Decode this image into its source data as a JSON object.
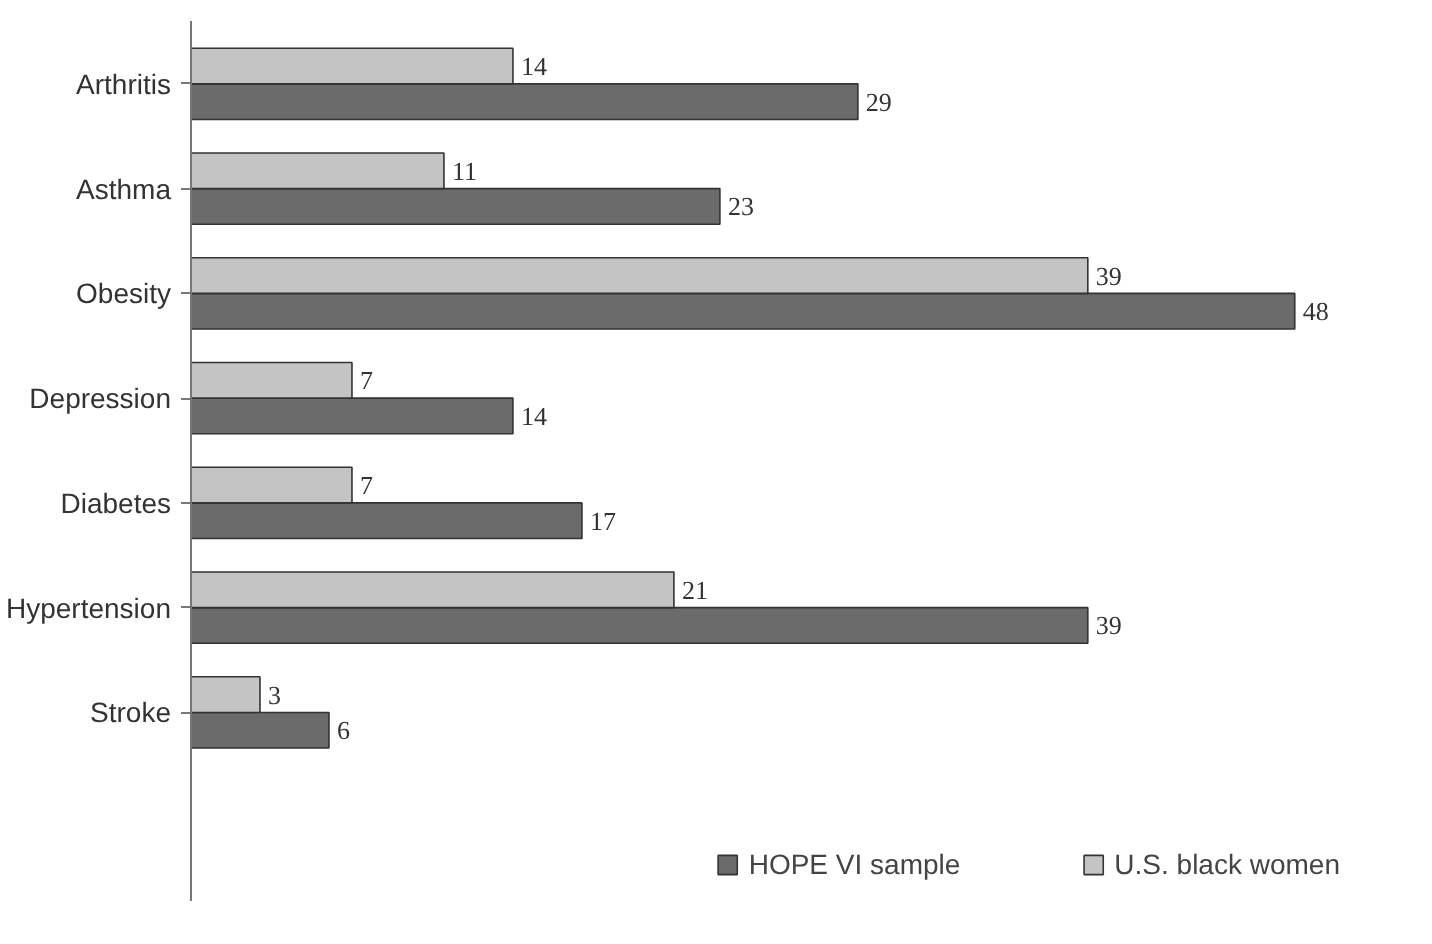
{
  "chart_data": {
    "type": "bar",
    "orientation": "horizontal",
    "categories": [
      "Arthritis",
      "Asthma",
      "Obesity",
      "Depression",
      "Diabetes",
      "Hypertension",
      "Stroke"
    ],
    "series": [
      {
        "name": "HOPE VI sample",
        "color": "#6b6b6b",
        "values": [
          29,
          23,
          48,
          14,
          17,
          39,
          6
        ]
      },
      {
        "name": "U.S. black women",
        "color": "#c4c4c4",
        "values": [
          14,
          11,
          39,
          7,
          7,
          21,
          3
        ]
      }
    ],
    "data_labels": true,
    "legend": "bottom",
    "grid": false
  }
}
